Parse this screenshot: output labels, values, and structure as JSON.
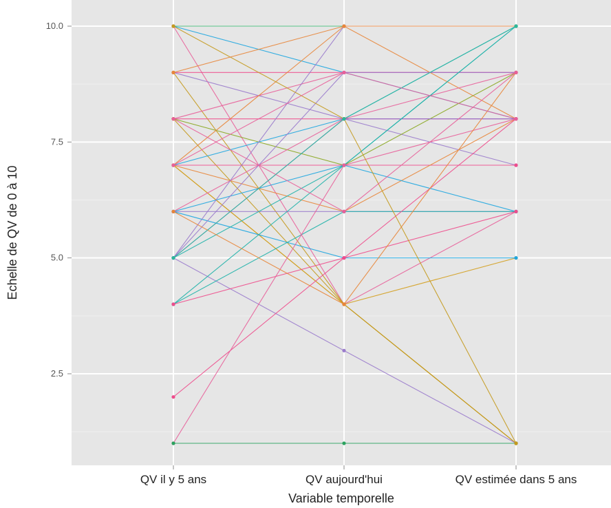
{
  "chart_data": {
    "type": "line",
    "xlabel": "Variable temporelle",
    "ylabel": "Echelle de QV de 0 à 10",
    "categories": [
      "QV il y 5 ans",
      "QV aujourd'hui",
      "QV estimée dans 5 ans"
    ],
    "y_ticks": [
      "2.5",
      "5.0",
      "7.5",
      "10.0"
    ],
    "ylim": [
      0.8,
      10.2
    ],
    "grid": true,
    "colors": {
      "panel": "#e6e6e6",
      "grid_major": "#ffffff",
      "grid_minor": "#f0f0f0"
    },
    "series": [
      {
        "values": [
          10,
          10,
          10
        ],
        "color": "#2ca25f"
      },
      {
        "values": [
          10,
          9,
          8
        ],
        "color": "#1ea6e0"
      },
      {
        "values": [
          10,
          4,
          6
        ],
        "color": "#e8609a"
      },
      {
        "values": [
          9,
          9,
          9
        ],
        "color": "#ee4d8c"
      },
      {
        "values": [
          9,
          8,
          7
        ],
        "color": "#9a7bcc"
      },
      {
        "values": [
          9,
          4,
          1
        ],
        "color": "#c49a1e"
      },
      {
        "values": [
          8,
          8,
          8
        ],
        "color": "#ee4d8c"
      },
      {
        "values": [
          8,
          9,
          9
        ],
        "color": "#e8609a"
      },
      {
        "values": [
          8,
          7,
          9
        ],
        "color": "#8aa720"
      },
      {
        "values": [
          8,
          4,
          1
        ],
        "color": "#c49a1e"
      },
      {
        "values": [
          7,
          7,
          7
        ],
        "color": "#ee4d8c"
      },
      {
        "values": [
          7,
          10,
          8
        ],
        "color": "#e8863a"
      },
      {
        "values": [
          7,
          8,
          10
        ],
        "color": "#1ea6e0"
      },
      {
        "values": [
          7,
          6,
          8
        ],
        "color": "#e8863a"
      },
      {
        "values": [
          7,
          4,
          1
        ],
        "color": "#c49a1e"
      },
      {
        "values": [
          7,
          4,
          5
        ],
        "color": "#d4a020"
      },
      {
        "values": [
          6,
          6,
          6
        ],
        "color": "#9a7bcc"
      },
      {
        "values": [
          6,
          5,
          5
        ],
        "color": "#1ea6e0"
      },
      {
        "values": [
          6,
          7,
          6
        ],
        "color": "#1ea6e0"
      },
      {
        "values": [
          6,
          8,
          9
        ],
        "color": "#e8609a"
      },
      {
        "values": [
          5,
          10,
          10
        ],
        "color": "#9a7bcc"
      },
      {
        "values": [
          5,
          9,
          9
        ],
        "color": "#9a7bcc"
      },
      {
        "values": [
          5,
          8,
          8
        ],
        "color": "#8a6fcc"
      },
      {
        "values": [
          5,
          7,
          10
        ],
        "color": "#20b2aa"
      },
      {
        "values": [
          5,
          3,
          1
        ],
        "color": "#9a7bcc"
      },
      {
        "values": [
          4,
          7,
          10
        ],
        "color": "#20b2aa"
      },
      {
        "values": [
          4,
          6,
          6
        ],
        "color": "#20b2aa"
      },
      {
        "values": [
          4,
          5,
          6
        ],
        "color": "#ee4d8c"
      },
      {
        "values": [
          2,
          5,
          8
        ],
        "color": "#ee4d8c"
      },
      {
        "values": [
          1,
          7,
          8
        ],
        "color": "#e8609a"
      },
      {
        "values": [
          1,
          1,
          1
        ],
        "color": "#2ca25f"
      },
      {
        "values": [
          10,
          8,
          1
        ],
        "color": "#c49a1e"
      },
      {
        "values": [
          9,
          10,
          10
        ],
        "color": "#e8863a"
      },
      {
        "values": [
          6,
          4,
          9
        ],
        "color": "#e8863a"
      },
      {
        "values": [
          8,
          6,
          9
        ],
        "color": "#e8609a"
      },
      {
        "values": [
          5,
          8,
          10
        ],
        "color": "#2cb89a"
      },
      {
        "values": [
          7,
          9,
          8
        ],
        "color": "#e8609a"
      }
    ]
  }
}
